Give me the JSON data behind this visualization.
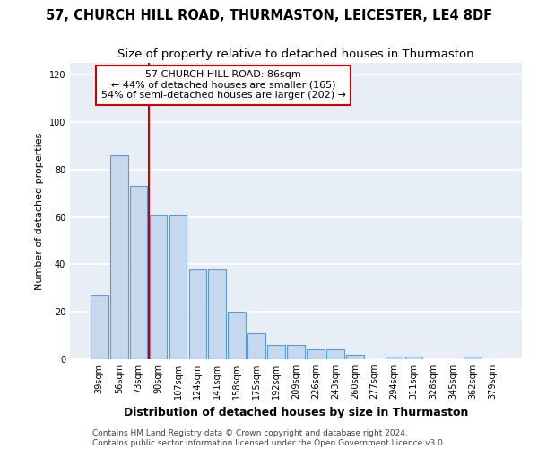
{
  "title1": "57, CHURCH HILL ROAD, THURMASTON, LEICESTER, LE4 8DF",
  "title2": "Size of property relative to detached houses in Thurmaston",
  "xlabel": "Distribution of detached houses by size in Thurmaston",
  "ylabel": "Number of detached properties",
  "categories": [
    "39sqm",
    "56sqm",
    "73sqm",
    "90sqm",
    "107sqm",
    "124sqm",
    "141sqm",
    "158sqm",
    "175sqm",
    "192sqm",
    "209sqm",
    "226sqm",
    "243sqm",
    "260sqm",
    "277sqm",
    "294sqm",
    "311sqm",
    "328sqm",
    "345sqm",
    "362sqm",
    "379sqm"
  ],
  "values": [
    27,
    86,
    73,
    61,
    61,
    38,
    38,
    20,
    11,
    6,
    6,
    4,
    4,
    2,
    0,
    1,
    1,
    0,
    0,
    1,
    0
  ],
  "bar_color": "#c5d8ee",
  "bar_edge_color": "#5b9bd5",
  "annotation_line1": "57 CHURCH HILL ROAD: 86sqm",
  "annotation_line2": "← 44% of detached houses are smaller (165)",
  "annotation_line3": "54% of semi-detached houses are larger (202) →",
  "vline_color": "#cc0000",
  "box_edge_color": "#cc0000",
  "footer1": "Contains HM Land Registry data © Crown copyright and database right 2024.",
  "footer2": "Contains public sector information licensed under the Open Government Licence v3.0.",
  "ylim": [
    0,
    125
  ],
  "yticks": [
    0,
    20,
    40,
    60,
    80,
    100,
    120
  ],
  "background_color": "#e8eef6",
  "grid_color": "#ffffff",
  "title1_fontsize": 10.5,
  "title2_fontsize": 9.5,
  "xlabel_fontsize": 9,
  "ylabel_fontsize": 8,
  "tick_fontsize": 7,
  "annot_fontsize": 8,
  "footer_fontsize": 6.5
}
